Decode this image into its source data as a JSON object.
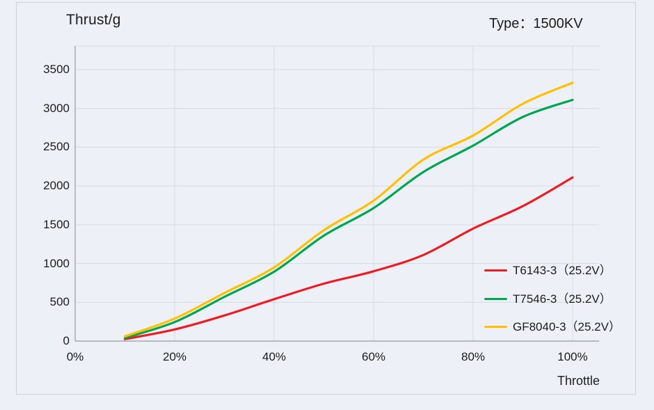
{
  "chart": {
    "title": "Thrust/g",
    "type_label": "Type：1500KV",
    "xlabel": "Throttle",
    "background_color": "#edf0f6",
    "panel_border_color": "#ccd0d8",
    "gridline_color": "#d7dadf",
    "axis_color": "#a3a7ad"
  },
  "chart_data": {
    "type": "line",
    "title": "Thrust/g",
    "annotation": "Type：1500KV",
    "xlabel": "Throttle",
    "ylabel": "Thrust/g",
    "x": [
      10,
      20,
      30,
      40,
      50,
      60,
      70,
      80,
      90,
      100
    ],
    "x_unit": "%",
    "series": [
      {
        "name": "T6143-3（25.2V）",
        "color": "#ed1c24",
        "values": [
          25,
          150,
          330,
          540,
          740,
          900,
          1110,
          1450,
          1740,
          2110
        ]
      },
      {
        "name": "T7546-3（25.2V）",
        "color": "#00a651",
        "values": [
          40,
          245,
          570,
          895,
          1360,
          1715,
          2180,
          2520,
          2890,
          3110
        ]
      },
      {
        "name": "GF8040-3（25.2V）",
        "color": "#ffc000",
        "values": [
          60,
          290,
          620,
          950,
          1430,
          1810,
          2340,
          2650,
          3060,
          3330
        ]
      }
    ],
    "x_tick_labels": [
      "0%",
      "20%",
      "40%",
      "60%",
      "80%",
      "100%"
    ],
    "x_tick_values": [
      0,
      20,
      40,
      60,
      80,
      100
    ],
    "y_tick_labels": [
      "0",
      "500",
      "1000",
      "1500",
      "2000",
      "2500",
      "3000",
      "3500"
    ],
    "y_tick_values": [
      0,
      500,
      1000,
      1500,
      2000,
      2500,
      3000,
      3500
    ],
    "xlim": [
      0,
      105.3
    ],
    "ylim": [
      0,
      3804
    ],
    "grid": true,
    "legend_position": "inside-right-lower"
  }
}
